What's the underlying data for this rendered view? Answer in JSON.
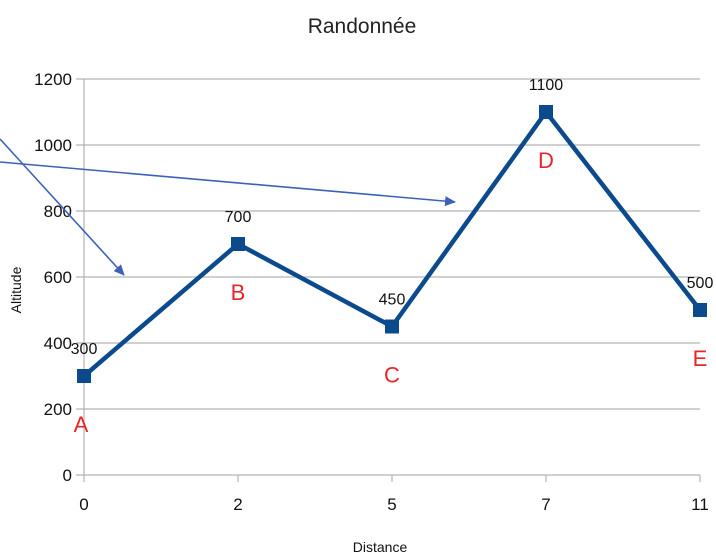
{
  "chart_data": {
    "type": "line",
    "title": "Randonnée",
    "xlabel": "Distance",
    "ylabel": "Altitude",
    "categories": [
      "0",
      "2",
      "5",
      "7",
      "11"
    ],
    "series": [
      {
        "values": [
          300,
          700,
          450,
          1100,
          500
        ]
      }
    ],
    "data_labels": [
      "300",
      "700",
      "450",
      "1100",
      "500"
    ],
    "point_letters": [
      "A",
      "B",
      "C",
      "D",
      "E"
    ],
    "ylim": [
      0,
      1200
    ],
    "yticks": [
      0,
      200,
      400,
      600,
      800,
      1000,
      1200
    ],
    "ytick_labels": [
      "0",
      "200",
      "400",
      "600",
      "800",
      "1000",
      "1200"
    ],
    "grid": true,
    "legend": "none",
    "colors": {
      "series": "#0b4a8c",
      "letters": "#e8252a",
      "arrows": "#3b62b8",
      "grid": "#b3b3b3"
    }
  }
}
